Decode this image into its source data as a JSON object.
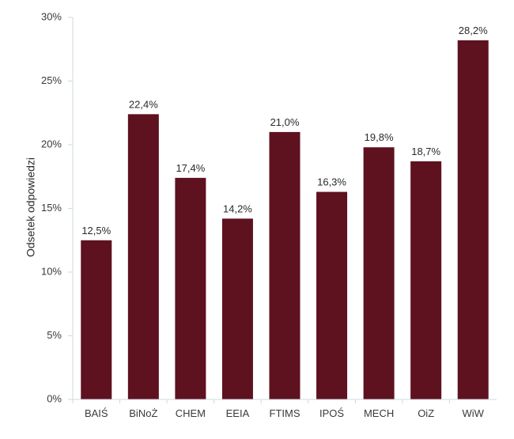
{
  "chart_data": {
    "type": "bar",
    "categories": [
      "BAIŚ",
      "BiNoŻ",
      "CHEM",
      "EEIA",
      "FTIMS",
      "IPOŚ",
      "MECH",
      "OiZ",
      "WiW"
    ],
    "values": [
      12.5,
      22.4,
      17.4,
      14.2,
      21.0,
      16.3,
      19.8,
      18.7,
      28.2
    ],
    "data_labels": [
      "12,5%",
      "22,4%",
      "17,4%",
      "14,2%",
      "21,0%",
      "16,3%",
      "19,8%",
      "18,7%",
      "28,2%"
    ],
    "title": "",
    "xlabel": "",
    "ylabel": "Odsetek odpowiedzi",
    "ylim": [
      0,
      30
    ],
    "yticks": [
      0,
      5,
      10,
      15,
      20,
      25,
      30
    ],
    "ytick_labels": [
      "0%",
      "5%",
      "10%",
      "15%",
      "20%",
      "25%",
      "30%"
    ],
    "grid": false,
    "legend": "none",
    "bar_color": "#5e111e",
    "axis_color": "#cfd8e0"
  }
}
